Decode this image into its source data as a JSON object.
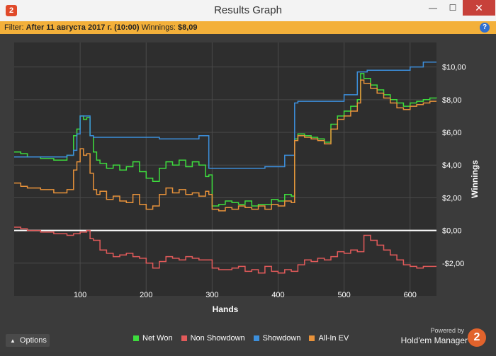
{
  "window": {
    "title": "Results Graph",
    "app_icon": "2",
    "minimize": "—",
    "maximize": "☐",
    "close": "✕"
  },
  "filter": {
    "label": "Filter:",
    "value": "After 11 августа 2017 г. (10:00)",
    "winnings_label": "Winnings:",
    "winnings_value": "$8,09",
    "help": "?"
  },
  "footer": {
    "options": "Options",
    "powered_by": "Powered by",
    "brand": "Hold'em Manager",
    "brand_logo": "2"
  },
  "chart_data": {
    "type": "line",
    "xlabel": "Hands",
    "ylabel": "Winnings",
    "xlim": [
      0,
      640
    ],
    "ylim": [
      -4.0,
      11.5
    ],
    "x_ticks": [
      100,
      200,
      300,
      400,
      500,
      600
    ],
    "y_ticks": [
      {
        "v": 10,
        "label": "$10,00"
      },
      {
        "v": 8,
        "label": "$8,00"
      },
      {
        "v": 6,
        "label": "$6,00"
      },
      {
        "v": 4,
        "label": "$4,00"
      },
      {
        "v": 2,
        "label": "$2,00"
      },
      {
        "v": 0,
        "label": "$0,00"
      },
      {
        "v": -2,
        "label": "-$2,00"
      }
    ],
    "legend_position": "bottom",
    "grid": true,
    "series": [
      {
        "name": "Net Won",
        "color": "#3ddc3d",
        "x": [
          0,
          10,
          20,
          40,
          60,
          80,
          90,
          95,
          100,
          105,
          110,
          115,
          120,
          125,
          130,
          140,
          150,
          160,
          170,
          180,
          190,
          200,
          210,
          220,
          230,
          240,
          250,
          260,
          270,
          280,
          290,
          295,
          300,
          310,
          320,
          330,
          340,
          350,
          360,
          370,
          380,
          390,
          400,
          410,
          420,
          425,
          430,
          440,
          450,
          460,
          470,
          480,
          490,
          500,
          510,
          520,
          525,
          530,
          540,
          550,
          560,
          570,
          580,
          590,
          600,
          610,
          620,
          630,
          640
        ],
        "y": [
          4.8,
          4.7,
          4.5,
          4.4,
          4.3,
          4.6,
          5.8,
          6.2,
          7.0,
          6.8,
          6.9,
          5.8,
          4.8,
          4.3,
          4.1,
          3.8,
          4.0,
          3.7,
          3.9,
          4.2,
          3.6,
          3.2,
          3.0,
          3.8,
          4.2,
          4.0,
          4.3,
          3.9,
          4.2,
          4.0,
          3.3,
          3.4,
          1.5,
          1.6,
          1.8,
          1.7,
          1.6,
          1.8,
          1.5,
          1.6,
          1.6,
          1.9,
          1.8,
          2.2,
          2.1,
          5.6,
          5.9,
          5.8,
          5.7,
          5.6,
          5.4,
          6.5,
          7.0,
          7.3,
          7.6,
          8.0,
          9.6,
          9.3,
          8.9,
          8.6,
          8.3,
          8.0,
          7.8,
          7.6,
          7.8,
          7.9,
          8.0,
          8.1,
          8.09
        ]
      },
      {
        "name": "Non Showdown",
        "color": "#e25a5a",
        "x": [
          0,
          10,
          20,
          40,
          60,
          80,
          90,
          100,
          110,
          115,
          120,
          130,
          140,
          150,
          160,
          170,
          180,
          190,
          200,
          210,
          220,
          230,
          240,
          250,
          260,
          270,
          280,
          290,
          300,
          310,
          320,
          330,
          340,
          350,
          360,
          370,
          380,
          390,
          400,
          410,
          420,
          430,
          440,
          450,
          460,
          470,
          480,
          490,
          500,
          510,
          520,
          530,
          540,
          550,
          560,
          570,
          580,
          590,
          600,
          610,
          620,
          630,
          640
        ],
        "y": [
          0.2,
          0.1,
          0.0,
          -0.1,
          -0.2,
          -0.3,
          -0.2,
          -0.1,
          0.0,
          -0.5,
          -0.6,
          -1.2,
          -1.4,
          -1.6,
          -1.5,
          -1.4,
          -1.6,
          -1.7,
          -2.0,
          -2.3,
          -1.9,
          -1.6,
          -1.7,
          -1.8,
          -1.6,
          -1.7,
          -1.8,
          -1.8,
          -2.3,
          -2.4,
          -2.4,
          -2.3,
          -2.2,
          -2.5,
          -2.4,
          -2.6,
          -2.2,
          -2.5,
          -2.6,
          -2.4,
          -2.5,
          -2.1,
          -1.8,
          -1.9,
          -1.7,
          -1.8,
          -1.6,
          -1.3,
          -1.4,
          -1.2,
          -1.3,
          -0.3,
          -0.6,
          -0.9,
          -1.2,
          -1.5,
          -1.8,
          -2.1,
          -2.2,
          -2.3,
          -2.2,
          -2.2,
          -2.2
        ]
      },
      {
        "name": "Showdown",
        "color": "#3c8fdc",
        "x": [
          0,
          20,
          40,
          60,
          80,
          90,
          95,
          100,
          110,
          115,
          120,
          140,
          160,
          180,
          200,
          220,
          240,
          260,
          270,
          280,
          290,
          295,
          300,
          320,
          340,
          360,
          380,
          400,
          410,
          420,
          425,
          430,
          440,
          460,
          480,
          490,
          500,
          510,
          520,
          530,
          535,
          540,
          560,
          580,
          600,
          610,
          620,
          640
        ],
        "y": [
          4.5,
          4.5,
          4.5,
          4.5,
          4.6,
          4.9,
          5.9,
          7.0,
          7.0,
          5.8,
          5.7,
          5.7,
          5.7,
          5.7,
          5.7,
          5.6,
          5.6,
          5.6,
          5.6,
          5.8,
          5.8,
          3.8,
          3.8,
          3.8,
          3.8,
          3.8,
          3.9,
          3.9,
          4.6,
          4.6,
          7.8,
          7.9,
          7.9,
          7.9,
          7.9,
          7.9,
          8.3,
          8.3,
          9.7,
          9.7,
          9.8,
          9.8,
          9.8,
          9.8,
          10.0,
          10.0,
          10.3,
          10.3
        ]
      },
      {
        "name": "All-In EV",
        "color": "#e8923a",
        "x": [
          0,
          10,
          20,
          40,
          60,
          80,
          90,
          95,
          100,
          105,
          110,
          115,
          120,
          125,
          130,
          140,
          150,
          160,
          170,
          180,
          190,
          200,
          210,
          220,
          230,
          240,
          250,
          260,
          270,
          280,
          290,
          295,
          300,
          310,
          320,
          330,
          340,
          350,
          360,
          370,
          380,
          390,
          400,
          410,
          420,
          425,
          430,
          440,
          450,
          460,
          470,
          480,
          490,
          500,
          510,
          520,
          525,
          530,
          540,
          550,
          560,
          570,
          580,
          590,
          600,
          610,
          620,
          630,
          640
        ],
        "y": [
          2.9,
          2.7,
          2.6,
          2.5,
          2.3,
          2.5,
          3.7,
          4.2,
          5.0,
          4.6,
          4.7,
          3.5,
          2.5,
          2.2,
          2.4,
          1.9,
          2.1,
          1.8,
          1.7,
          2.2,
          1.6,
          1.3,
          1.5,
          2.2,
          2.6,
          2.3,
          2.5,
          2.2,
          2.3,
          2.1,
          2.4,
          2.2,
          1.3,
          1.2,
          1.4,
          1.3,
          1.5,
          1.4,
          1.3,
          1.5,
          1.3,
          1.6,
          1.5,
          1.8,
          1.7,
          5.5,
          5.8,
          5.7,
          5.6,
          5.5,
          5.3,
          6.2,
          6.8,
          7.0,
          7.3,
          7.8,
          9.2,
          9.0,
          8.7,
          8.4,
          8.1,
          7.8,
          7.5,
          7.4,
          7.6,
          7.7,
          7.8,
          7.9,
          7.9
        ]
      }
    ]
  }
}
